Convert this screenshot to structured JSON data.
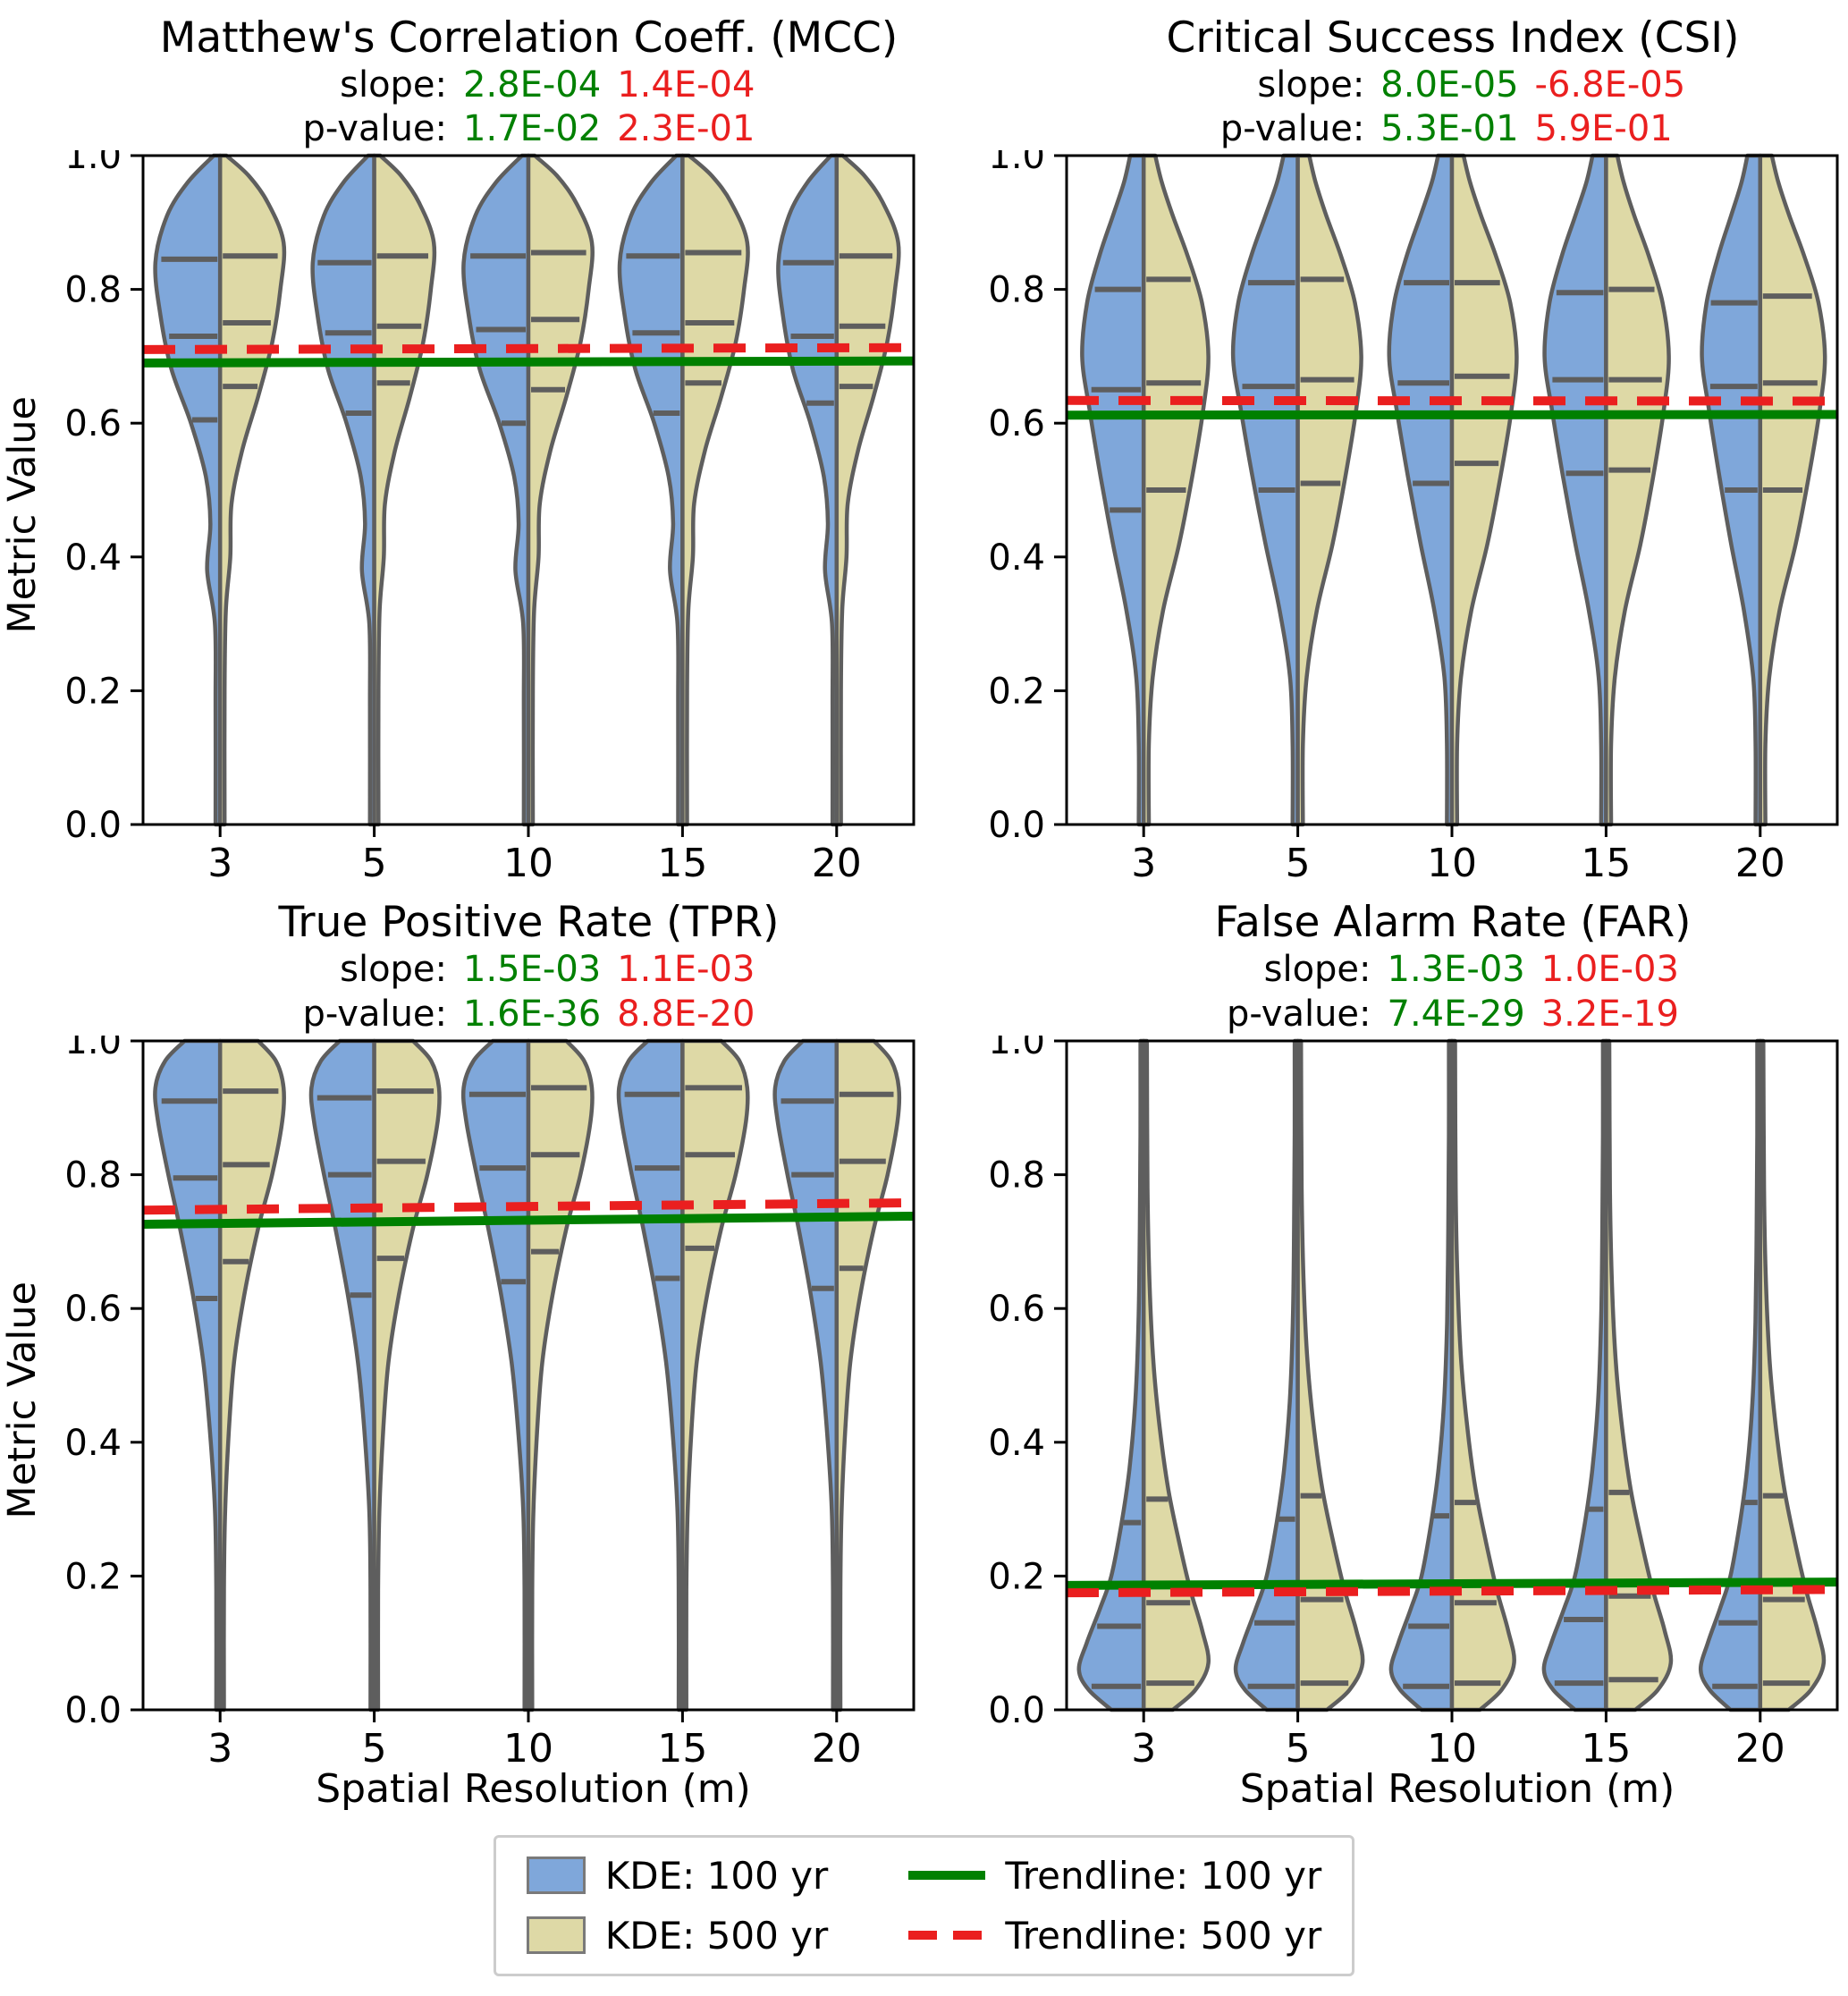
{
  "labels": {
    "slope": "slope:",
    "pvalue": "p-value:"
  },
  "colors": {
    "blue": "#7fa7da",
    "khaki": "#ded9a6",
    "green": "#008000",
    "red": "#ea1f1f",
    "violin_edge": "#5e5e5e",
    "inner_mark": "#5e5e5e",
    "legend_border": "#cccccc"
  },
  "legend": {
    "kde100": "KDE: 100 yr",
    "kde500": "KDE: 500 yr",
    "trend100": "Trendline: 100 yr",
    "trend500": "Trendline: 500 yr"
  },
  "chart_data": [
    {
      "type": "violin",
      "title": "Matthew's Correlation Coeff. (MCC)",
      "stats": {
        "slope_100": "2.8E-04",
        "slope_500": "1.4E-04",
        "p_100": "1.7E-02",
        "p_500": "2.3E-01"
      },
      "categories": [
        "3",
        "5",
        "10",
        "15",
        "20"
      ],
      "xlabel": "",
      "ylabel": "Metric Value",
      "ylim": [
        0,
        1
      ],
      "yticks": [
        0,
        0.2,
        0.4,
        0.6,
        0.8,
        1.0
      ],
      "trend_100": [
        0.69,
        0.693
      ],
      "trend_500": [
        0.71,
        0.713
      ],
      "v100": {
        "profile": [
          [
            0.0,
            0.07
          ],
          [
            0.18,
            0.07
          ],
          [
            0.3,
            0.08
          ],
          [
            0.38,
            0.2
          ],
          [
            0.45,
            0.15
          ],
          [
            0.52,
            0.22
          ],
          [
            0.6,
            0.45
          ],
          [
            0.68,
            0.75
          ],
          [
            0.76,
            0.92
          ],
          [
            0.84,
            1.0
          ],
          [
            0.91,
            0.82
          ],
          [
            0.96,
            0.5
          ],
          [
            1.0,
            0.1
          ]
        ],
        "scales": [
          1.0,
          0.95,
          1.0,
          0.97,
          0.9
        ],
        "quartiles": [
          [
            0.605,
            0.73,
            0.845
          ],
          [
            0.615,
            0.735,
            0.84
          ],
          [
            0.6,
            0.74,
            0.85
          ],
          [
            0.615,
            0.735,
            0.85
          ],
          [
            0.63,
            0.73,
            0.84
          ]
        ]
      },
      "v500": {
        "profile": [
          [
            0.0,
            0.07
          ],
          [
            0.2,
            0.07
          ],
          [
            0.32,
            0.09
          ],
          [
            0.4,
            0.16
          ],
          [
            0.48,
            0.18
          ],
          [
            0.56,
            0.35
          ],
          [
            0.64,
            0.6
          ],
          [
            0.72,
            0.82
          ],
          [
            0.8,
            0.95
          ],
          [
            0.87,
            1.0
          ],
          [
            0.93,
            0.75
          ],
          [
            0.97,
            0.45
          ],
          [
            1.0,
            0.1
          ]
        ],
        "scales": [
          0.98,
          0.92,
          0.98,
          1.0,
          0.95
        ],
        "quartiles": [
          [
            0.655,
            0.75,
            0.85
          ],
          [
            0.66,
            0.745,
            0.85
          ],
          [
            0.65,
            0.755,
            0.855
          ],
          [
            0.66,
            0.75,
            0.855
          ],
          [
            0.655,
            0.745,
            0.85
          ]
        ]
      }
    },
    {
      "type": "violin",
      "title": "Critical Success Index (CSI)",
      "stats": {
        "slope_100": "8.0E-05",
        "slope_500": "-6.8E-05",
        "p_100": "5.3E-01",
        "p_500": "5.9E-01"
      },
      "categories": [
        "3",
        "5",
        "10",
        "15",
        "20"
      ],
      "xlabel": "",
      "ylabel": "",
      "ylim": [
        0,
        1
      ],
      "yticks": [
        0,
        0.2,
        0.4,
        0.6,
        0.8,
        1.0
      ],
      "trend_100": [
        0.612,
        0.613
      ],
      "trend_500": [
        0.634,
        0.633
      ],
      "v100": {
        "profile": [
          [
            0.0,
            0.08
          ],
          [
            0.12,
            0.08
          ],
          [
            0.22,
            0.12
          ],
          [
            0.32,
            0.28
          ],
          [
            0.42,
            0.5
          ],
          [
            0.52,
            0.7
          ],
          [
            0.62,
            0.88
          ],
          [
            0.7,
            1.0
          ],
          [
            0.78,
            0.92
          ],
          [
            0.85,
            0.72
          ],
          [
            0.91,
            0.5
          ],
          [
            0.96,
            0.32
          ],
          [
            1.0,
            0.22
          ]
        ],
        "scales": [
          0.95,
          1.0,
          0.97,
          0.95,
          0.9
        ],
        "quartiles": [
          [
            0.47,
            0.65,
            0.8
          ],
          [
            0.5,
            0.655,
            0.81
          ],
          [
            0.51,
            0.66,
            0.81
          ],
          [
            0.525,
            0.665,
            0.795
          ],
          [
            0.5,
            0.655,
            0.78
          ]
        ]
      },
      "v500": {
        "profile": [
          [
            0.0,
            0.08
          ],
          [
            0.12,
            0.08
          ],
          [
            0.22,
            0.14
          ],
          [
            0.32,
            0.3
          ],
          [
            0.42,
            0.55
          ],
          [
            0.52,
            0.75
          ],
          [
            0.62,
            0.92
          ],
          [
            0.7,
            1.0
          ],
          [
            0.78,
            0.9
          ],
          [
            0.85,
            0.68
          ],
          [
            0.91,
            0.45
          ],
          [
            0.96,
            0.28
          ],
          [
            1.0,
            0.18
          ]
        ],
        "scales": [
          1.0,
          0.98,
          1.0,
          0.97,
          1.0
        ],
        "quartiles": [
          [
            0.5,
            0.66,
            0.815
          ],
          [
            0.51,
            0.665,
            0.815
          ],
          [
            0.54,
            0.67,
            0.81
          ],
          [
            0.53,
            0.665,
            0.8
          ],
          [
            0.5,
            0.66,
            0.79
          ]
        ]
      }
    },
    {
      "type": "violin",
      "title": "True Positive Rate (TPR)",
      "stats": {
        "slope_100": "1.5E-03",
        "slope_500": "1.1E-03",
        "p_100": "1.6E-36",
        "p_500": "8.8E-20"
      },
      "categories": [
        "3",
        "5",
        "10",
        "15",
        "20"
      ],
      "xlabel": "Spatial Resolution (m)",
      "ylabel": "Metric Value",
      "ylim": [
        0,
        1
      ],
      "yticks": [
        0,
        0.2,
        0.4,
        0.6,
        0.8,
        1.0
      ],
      "trend_100": [
        0.726,
        0.738
      ],
      "trend_500": [
        0.747,
        0.758
      ],
      "v100": {
        "profile": [
          [
            0.0,
            0.06
          ],
          [
            0.18,
            0.06
          ],
          [
            0.3,
            0.08
          ],
          [
            0.42,
            0.16
          ],
          [
            0.52,
            0.26
          ],
          [
            0.62,
            0.42
          ],
          [
            0.72,
            0.62
          ],
          [
            0.8,
            0.8
          ],
          [
            0.88,
            0.96
          ],
          [
            0.93,
            1.0
          ],
          [
            0.97,
            0.85
          ],
          [
            1.0,
            0.55
          ]
        ],
        "scales": [
          1.0,
          0.97,
          1.0,
          0.98,
          0.95
        ],
        "quartiles": [
          [
            0.615,
            0.795,
            0.91
          ],
          [
            0.62,
            0.8,
            0.915
          ],
          [
            0.64,
            0.81,
            0.92
          ],
          [
            0.645,
            0.81,
            0.92
          ],
          [
            0.63,
            0.8,
            0.91
          ]
        ]
      },
      "v500": {
        "profile": [
          [
            0.0,
            0.06
          ],
          [
            0.18,
            0.06
          ],
          [
            0.3,
            0.08
          ],
          [
            0.42,
            0.14
          ],
          [
            0.52,
            0.22
          ],
          [
            0.62,
            0.38
          ],
          [
            0.72,
            0.6
          ],
          [
            0.8,
            0.82
          ],
          [
            0.88,
            0.98
          ],
          [
            0.93,
            1.0
          ],
          [
            0.97,
            0.88
          ],
          [
            1.0,
            0.6
          ]
        ],
        "scales": [
          0.98,
          1.0,
          0.98,
          1.0,
          0.96
        ],
        "quartiles": [
          [
            0.67,
            0.815,
            0.925
          ],
          [
            0.675,
            0.82,
            0.925
          ],
          [
            0.685,
            0.83,
            0.93
          ],
          [
            0.69,
            0.83,
            0.93
          ],
          [
            0.66,
            0.82,
            0.92
          ]
        ]
      }
    },
    {
      "type": "violin",
      "title": "False Alarm Rate (FAR)",
      "stats": {
        "slope_100": "1.3E-03",
        "slope_500": "1.0E-03",
        "p_100": "7.4E-29",
        "p_500": "3.2E-19"
      },
      "categories": [
        "3",
        "5",
        "10",
        "15",
        "20"
      ],
      "xlabel": "Spatial Resolution (m)",
      "ylabel": "",
      "ylim": [
        0,
        1
      ],
      "yticks": [
        0,
        0.2,
        0.4,
        0.6,
        0.8,
        1.0
      ],
      "trend_100": [
        0.186,
        0.191
      ],
      "trend_500": [
        0.175,
        0.18
      ],
      "v100": {
        "profile": [
          [
            0.0,
            0.5
          ],
          [
            0.03,
            0.85
          ],
          [
            0.06,
            1.0
          ],
          [
            0.1,
            0.88
          ],
          [
            0.15,
            0.68
          ],
          [
            0.2,
            0.5
          ],
          [
            0.28,
            0.34
          ],
          [
            0.36,
            0.22
          ],
          [
            0.46,
            0.13
          ],
          [
            0.58,
            0.08
          ],
          [
            0.72,
            0.06
          ],
          [
            0.86,
            0.05
          ],
          [
            1.0,
            0.05
          ]
        ],
        "scales": [
          1.0,
          0.96,
          0.94,
          0.96,
          0.92
        ],
        "quartiles": [
          [
            0.035,
            0.125,
            0.28
          ],
          [
            0.035,
            0.13,
            0.285
          ],
          [
            0.035,
            0.125,
            0.29
          ],
          [
            0.04,
            0.135,
            0.3
          ],
          [
            0.035,
            0.13,
            0.31
          ]
        ]
      },
      "v500": {
        "profile": [
          [
            0.0,
            0.45
          ],
          [
            0.03,
            0.8
          ],
          [
            0.07,
            1.0
          ],
          [
            0.12,
            0.9
          ],
          [
            0.18,
            0.72
          ],
          [
            0.25,
            0.55
          ],
          [
            0.33,
            0.38
          ],
          [
            0.42,
            0.25
          ],
          [
            0.52,
            0.15
          ],
          [
            0.64,
            0.09
          ],
          [
            0.78,
            0.06
          ],
          [
            1.0,
            0.05
          ]
        ],
        "scales": [
          1.0,
          1.0,
          0.96,
          1.0,
          0.98
        ],
        "quartiles": [
          [
            0.04,
            0.16,
            0.315
          ],
          [
            0.04,
            0.165,
            0.32
          ],
          [
            0.04,
            0.16,
            0.31
          ],
          [
            0.045,
            0.17,
            0.325
          ],
          [
            0.04,
            0.165,
            0.32
          ]
        ]
      }
    }
  ]
}
